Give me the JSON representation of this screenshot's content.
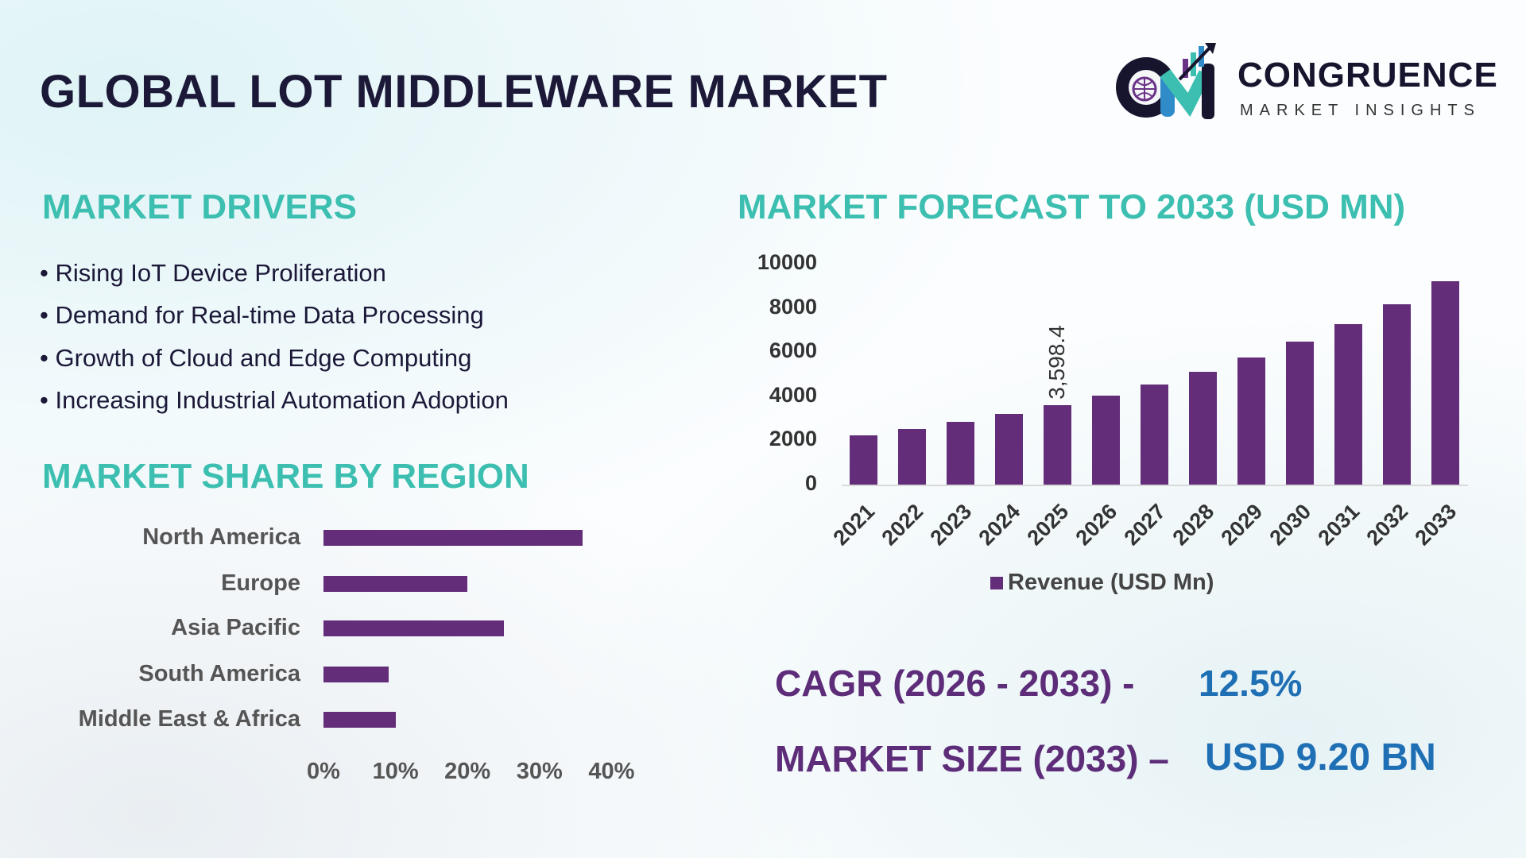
{
  "title": "GLOBAL LOT MIDDLEWARE MARKET",
  "logo": {
    "name": "CONGRUENCE",
    "tagline": "MARKET INSIGHTS"
  },
  "drivers": {
    "heading": "MARKET DRIVERS",
    "items": [
      "• Rising IoT Device Proliferation",
      "• Demand for Real-time Data Processing",
      "• Growth of Cloud and Edge Computing",
      "• Increasing Industrial Automation Adoption"
    ]
  },
  "colors": {
    "bar": "#632d7a",
    "heading": "#3cbfb0",
    "title": "#1b1838",
    "stat_label": "#5e2d79",
    "stat_value": "#1f6fb5"
  },
  "stats": {
    "cagr_label": "CAGR (2026 - 2033) -",
    "cagr_value": "12.5%",
    "size_label": "MARKET SIZE (2033) –",
    "size_value": "USD 9.20 BN"
  },
  "chart_data": [
    {
      "type": "bar",
      "orientation": "horizontal",
      "title": "MARKET SHARE BY REGION",
      "categories": [
        "North America",
        "Europe",
        "Asia Pacific",
        "South America",
        "Middle East & Africa"
      ],
      "values": [
        36,
        20,
        25,
        9,
        10
      ],
      "xlim": [
        0,
        40
      ],
      "xticks": [
        "0%",
        "10%",
        "20%",
        "30%",
        "40%"
      ],
      "grid": false
    },
    {
      "type": "bar",
      "title": "MARKET FORECAST TO 2033 (USD MN)",
      "categories": [
        "2021",
        "2022",
        "2023",
        "2024",
        "2025",
        "2026",
        "2027",
        "2028",
        "2029",
        "2030",
        "2031",
        "2032",
        "2033"
      ],
      "series": [
        {
          "name": "Revenue (USD Mn)",
          "values": [
            2230,
            2520,
            2840,
            3200,
            3598.4,
            4030,
            4530,
            5110,
            5760,
            6480,
            7270,
            8170,
            9200
          ]
        }
      ],
      "data_labels": [
        {
          "category": "2025",
          "label": "3,598.4"
        }
      ],
      "ylim": [
        0,
        10000
      ],
      "yticks": [
        "0",
        "2000",
        "4000",
        "6000",
        "8000",
        "10000"
      ],
      "legend": "bottom",
      "grid": false
    }
  ]
}
